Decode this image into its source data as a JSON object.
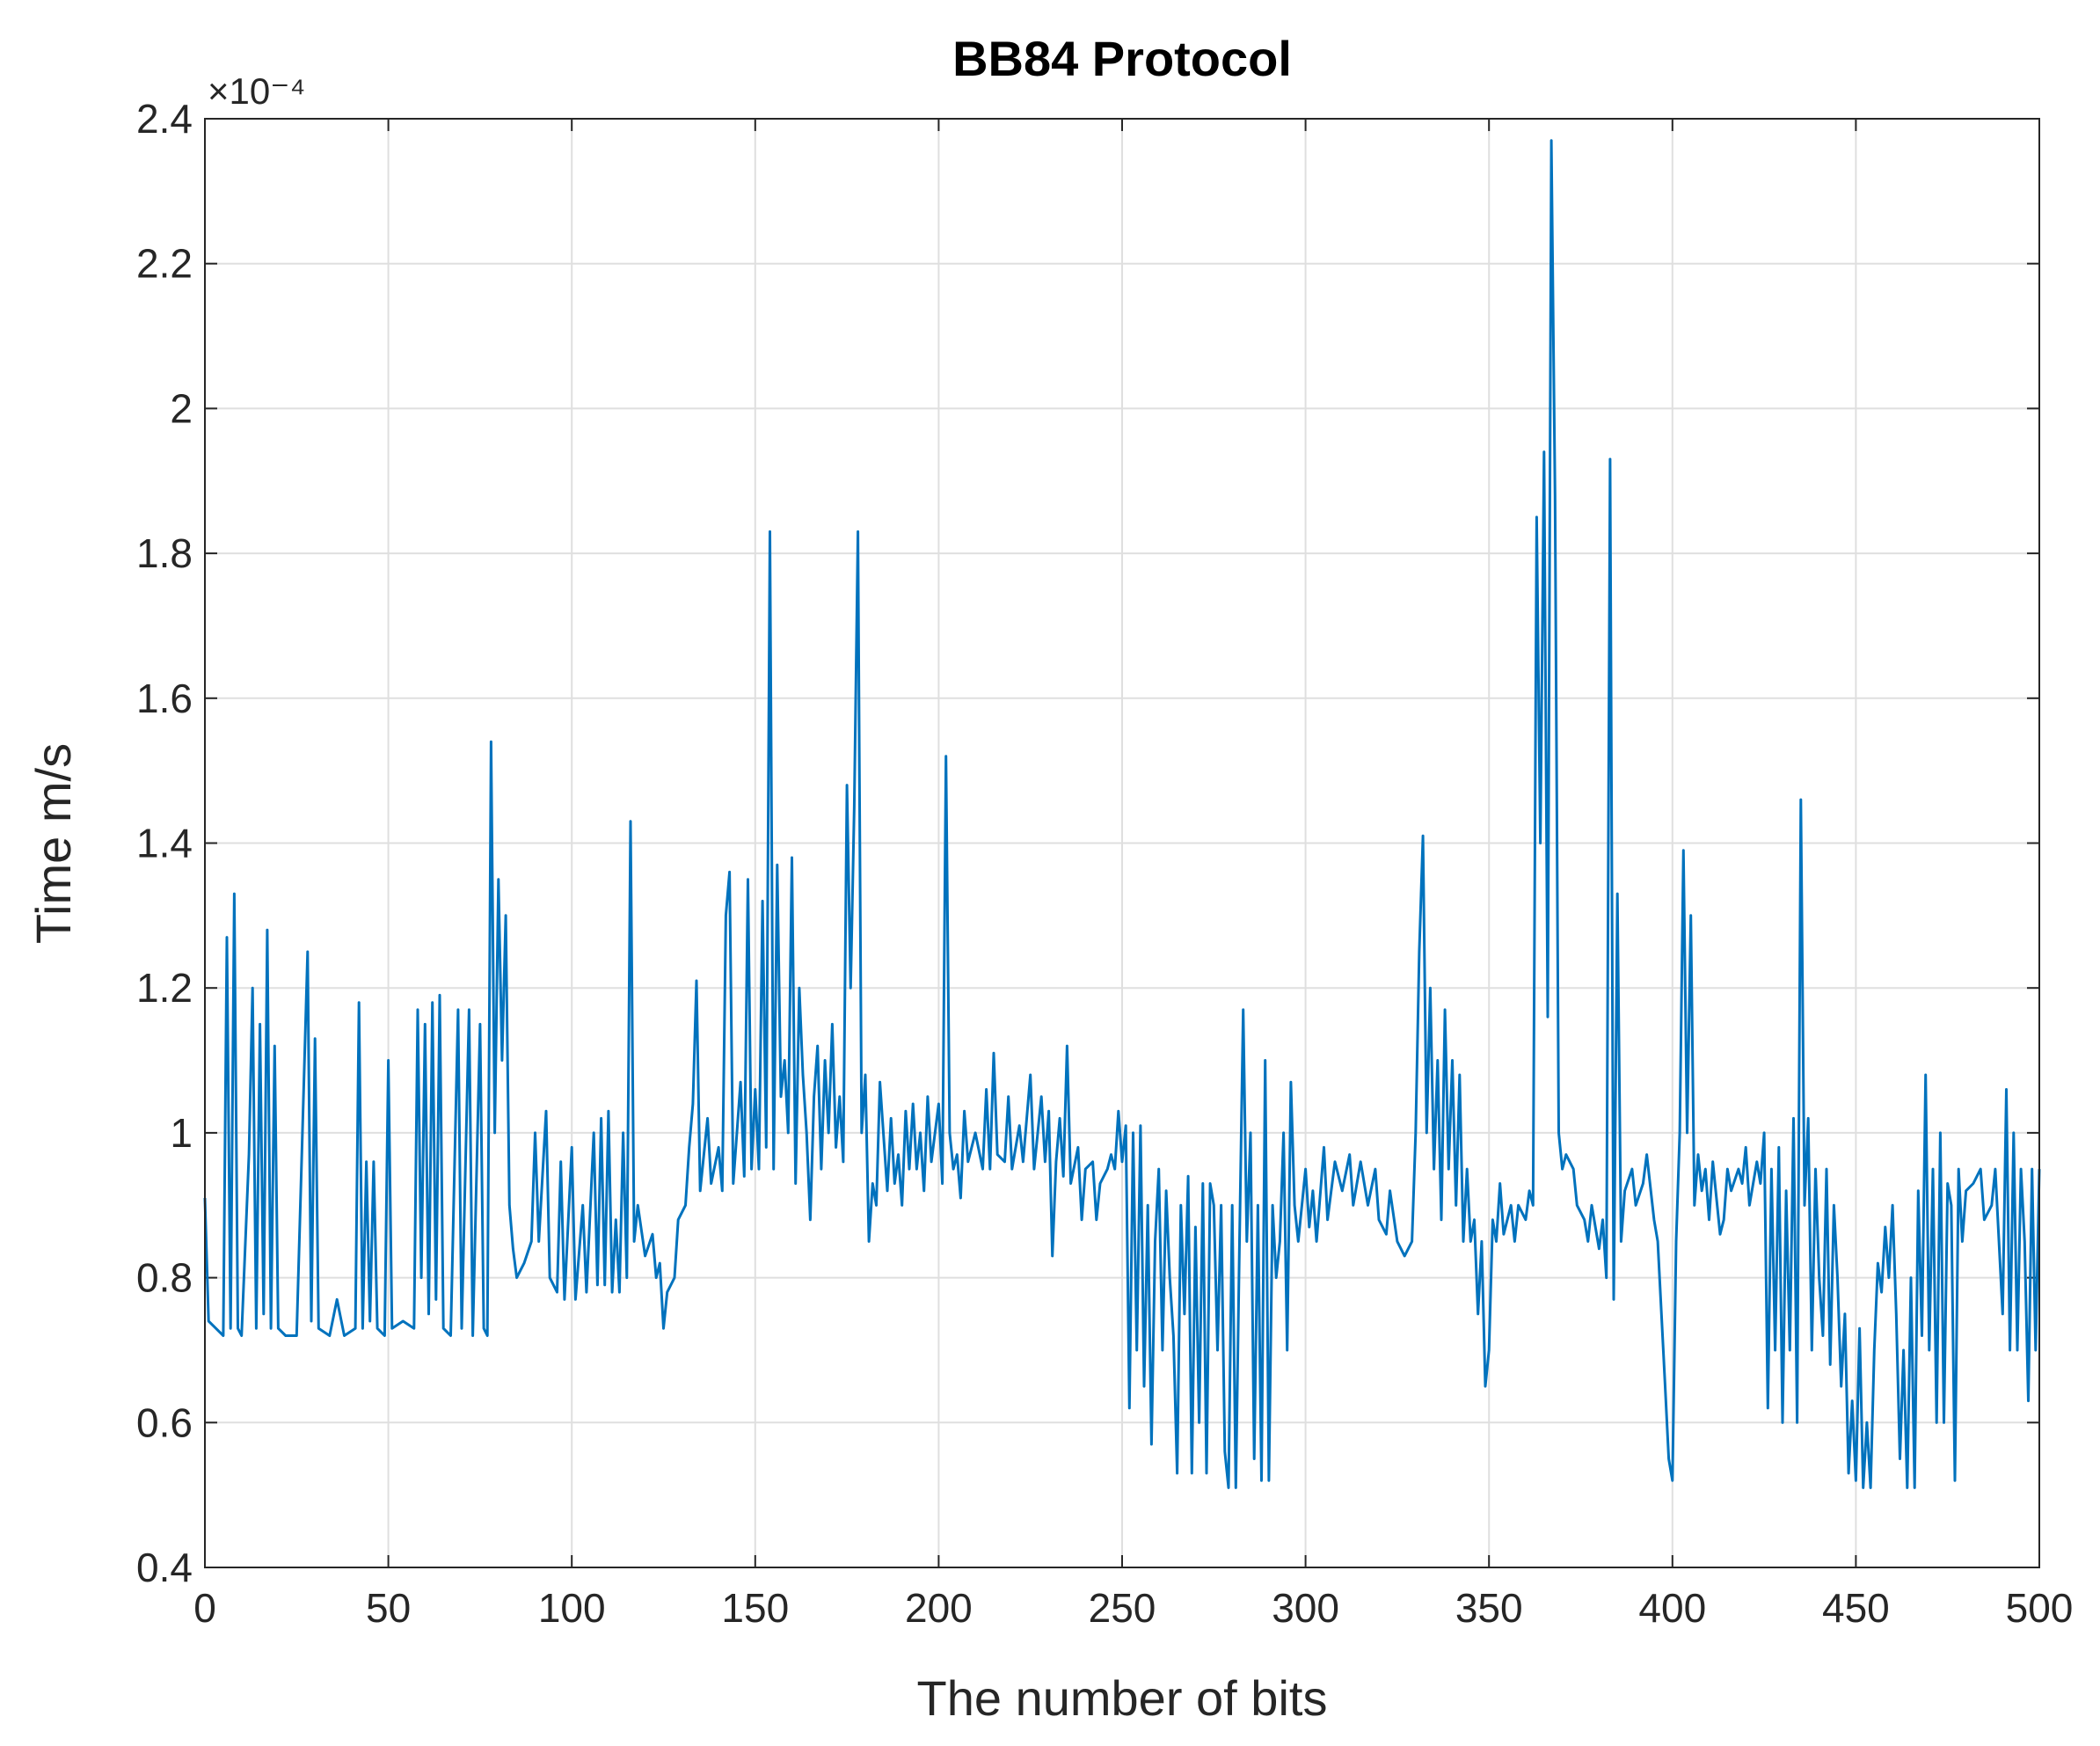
{
  "chart_data": {
    "type": "line",
    "title": "BB84 Protocol",
    "xlabel": "The number of bits",
    "ylabel": "Time m/s",
    "y_scale_label": "×10⁻⁴",
    "xlim": [
      0,
      500
    ],
    "xticks": [
      0,
      50,
      100,
      150,
      200,
      250,
      300,
      350,
      400,
      450,
      500
    ],
    "ylim": [
      0.4,
      2.4
    ],
    "yticks": [
      0.4,
      0.6,
      0.8,
      1,
      1.2,
      1.4,
      1.6,
      1.8,
      2,
      2.2,
      2.4
    ],
    "grid": true,
    "color": "#0072bd",
    "x": [
      0,
      1,
      3,
      5,
      6,
      7,
      8,
      9,
      10,
      12,
      13,
      14,
      15,
      16,
      17,
      18,
      19,
      20,
      22,
      25,
      28,
      29,
      30,
      31,
      34,
      36,
      38,
      41,
      42,
      43,
      44,
      45,
      46,
      47,
      49,
      50,
      51,
      54,
      57,
      58,
      59,
      60,
      61,
      62,
      63,
      64,
      65,
      67,
      69,
      70,
      72,
      73,
      75,
      76,
      77,
      78,
      79,
      80,
      81,
      82,
      83,
      84,
      85,
      87,
      89,
      90,
      91,
      93,
      94,
      96,
      97,
      98,
      100,
      101,
      103,
      104,
      106,
      107,
      108,
      109,
      110,
      111,
      112,
      113,
      114,
      115,
      116,
      117,
      118,
      120,
      122,
      123,
      124,
      125,
      126,
      128,
      129,
      131,
      132,
      133,
      134,
      135,
      137,
      138,
      140,
      141,
      142,
      143,
      144,
      146,
      147,
      148,
      149,
      150,
      151,
      152,
      153,
      154,
      155,
      156,
      157,
      158,
      159,
      160,
      161,
      162,
      163,
      164,
      165,
      166,
      167,
      168,
      169,
      170,
      171,
      172,
      173,
      174,
      175,
      176,
      177,
      178,
      179,
      180,
      181,
      182,
      183,
      184,
      186,
      187,
      188,
      189,
      190,
      191,
      192,
      193,
      194,
      195,
      196,
      197,
      198,
      200,
      201,
      202,
      203,
      204,
      205,
      206,
      207,
      208,
      210,
      212,
      213,
      214,
      215,
      216,
      218,
      219,
      220,
      222,
      223,
      225,
      226,
      228,
      229,
      230,
      231,
      232,
      233,
      234,
      235,
      236,
      238,
      239,
      240,
      242,
      243,
      244,
      246,
      247,
      248,
      249,
      250,
      251,
      252,
      253,
      254,
      255,
      256,
      257,
      258,
      259,
      260,
      261,
      262,
      263,
      264,
      265,
      266,
      267,
      268,
      269,
      270,
      271,
      272,
      273,
      274,
      275,
      276,
      277,
      278,
      279,
      280,
      281,
      282,
      283,
      284,
      285,
      286,
      287,
      288,
      289,
      290,
      291,
      292,
      293,
      294,
      295,
      296,
      297,
      298,
      300,
      301,
      302,
      303,
      305,
      306,
      308,
      310,
      312,
      313,
      315,
      317,
      319,
      320,
      322,
      323,
      325,
      327,
      329,
      330,
      331,
      332,
      333,
      334,
      335,
      336,
      337,
      338,
      339,
      340,
      341,
      342,
      343,
      344,
      345,
      346,
      347,
      348,
      349,
      350,
      351,
      352,
      353,
      354,
      356,
      357,
      358,
      360,
      361,
      362,
      363,
      364,
      365,
      366,
      367,
      368,
      369,
      370,
      371,
      373,
      374,
      376,
      377,
      378,
      380,
      381,
      382,
      383,
      384,
      385,
      386,
      387,
      389,
      390,
      392,
      393,
      395,
      396,
      397,
      398,
      399,
      400,
      401,
      402,
      403,
      404,
      405,
      406,
      407,
      408,
      409,
      410,
      411,
      413,
      414,
      415,
      416,
      418,
      419,
      420,
      421,
      423,
      424,
      425,
      426,
      427,
      428,
      429,
      430,
      431,
      432,
      433,
      434,
      435,
      436,
      437,
      438,
      439,
      440,
      441,
      442,
      443,
      444,
      445,
      446,
      447,
      448,
      449,
      450,
      451,
      452,
      453,
      454,
      455,
      456,
      457,
      458,
      459,
      460,
      461,
      462,
      463,
      464,
      465,
      466,
      467,
      468,
      469,
      470,
      471,
      472,
      473,
      474,
      475,
      476,
      477,
      478,
      479,
      480,
      482,
      484,
      485,
      487,
      488,
      490,
      491,
      492,
      493,
      494,
      495,
      496,
      497,
      498,
      499,
      500
    ],
    "values": [
      0.91,
      0.74,
      0.73,
      0.72,
      1.27,
      0.73,
      1.33,
      0.73,
      0.72,
      0.97,
      1.2,
      0.73,
      1.15,
      0.75,
      1.28,
      0.73,
      1.12,
      0.73,
      0.72,
      0.72,
      1.25,
      0.74,
      1.13,
      0.73,
      0.72,
      0.77,
      0.72,
      0.73,
      1.18,
      0.73,
      0.96,
      0.74,
      0.96,
      0.73,
      0.72,
      1.1,
      0.73,
      0.74,
      0.73,
      1.17,
      0.8,
      1.15,
      0.75,
      1.18,
      0.77,
      1.19,
      0.73,
      0.72,
      1.17,
      0.73,
      1.17,
      0.72,
      1.15,
      0.73,
      0.72,
      1.54,
      1.0,
      1.35,
      1.1,
      1.3,
      0.9,
      0.84,
      0.8,
      0.82,
      0.85,
      1.0,
      0.85,
      1.03,
      0.8,
      0.78,
      0.96,
      0.77,
      0.98,
      0.77,
      0.9,
      0.78,
      1.0,
      0.79,
      1.02,
      0.79,
      1.03,
      0.78,
      0.88,
      0.78,
      1.0,
      0.8,
      1.43,
      0.85,
      0.9,
      0.83,
      0.86,
      0.8,
      0.82,
      0.73,
      0.78,
      0.8,
      0.88,
      0.9,
      0.98,
      1.04,
      1.21,
      0.92,
      1.02,
      0.93,
      0.98,
      0.92,
      1.3,
      1.36,
      0.93,
      1.07,
      0.94,
      1.35,
      0.95,
      1.06,
      0.95,
      1.32,
      0.98,
      1.83,
      0.95,
      1.37,
      1.05,
      1.1,
      1.0,
      1.38,
      0.93,
      1.2,
      1.08,
      1.0,
      0.88,
      1.05,
      1.12,
      0.95,
      1.1,
      1.0,
      1.15,
      0.98,
      1.05,
      0.96,
      1.48,
      1.2,
      1.45,
      1.83,
      1.0,
      1.08,
      0.85,
      0.93,
      0.9,
      1.07,
      0.92,
      1.02,
      0.93,
      0.97,
      0.9,
      1.03,
      0.95,
      1.04,
      0.95,
      1.0,
      0.92,
      1.05,
      0.96,
      1.04,
      0.93,
      1.52,
      1.0,
      0.95,
      0.97,
      0.91,
      1.03,
      0.96,
      1.0,
      0.95,
      1.06,
      0.95,
      1.11,
      0.97,
      0.96,
      1.05,
      0.95,
      1.01,
      0.96,
      1.08,
      0.95,
      1.05,
      0.96,
      1.03,
      0.83,
      0.96,
      1.02,
      0.94,
      1.12,
      0.93,
      0.98,
      0.88,
      0.95,
      0.96,
      0.88,
      0.93,
      0.95,
      0.97,
      0.95,
      1.03,
      0.96,
      1.01,
      0.62,
      1.0,
      0.7,
      1.01,
      0.65,
      0.9,
      0.57,
      0.85,
      0.95,
      0.7,
      0.92,
      0.8,
      0.72,
      0.53,
      0.9,
      0.75,
      0.94,
      0.53,
      0.87,
      0.6,
      0.93,
      0.53,
      0.93,
      0.9,
      0.7,
      0.9,
      0.56,
      0.51,
      0.9,
      0.51,
      0.85,
      1.17,
      0.85,
      1.0,
      0.55,
      0.9,
      0.52,
      1.1,
      0.52,
      0.9,
      0.8,
      0.85,
      1.0,
      0.7,
      1.07,
      0.9,
      0.85,
      0.95,
      0.87,
      0.92,
      0.85,
      0.98,
      0.88,
      0.96,
      0.92,
      0.97,
      0.9,
      0.96,
      0.9,
      0.95,
      0.88,
      0.86,
      0.92,
      0.85,
      0.83,
      0.85,
      1.0,
      1.25,
      1.41,
      1.0,
      1.2,
      0.95,
      1.1,
      0.88,
      1.17,
      0.95,
      1.1,
      0.9,
      1.08,
      0.85,
      0.95,
      0.85,
      0.88,
      0.75,
      0.85,
      0.65,
      0.7,
      0.88,
      0.85,
      0.93,
      0.86,
      0.9,
      0.85,
      0.9,
      0.88,
      0.92,
      0.9,
      1.85,
      1.4,
      1.94,
      1.16,
      2.37,
      1.88,
      1.0,
      0.95,
      0.97,
      0.95,
      0.9,
      0.88,
      0.85,
      0.9,
      0.84,
      0.88,
      0.8,
      1.93,
      0.77,
      1.33,
      0.85,
      0.92,
      0.95,
      0.9,
      0.93,
      0.97,
      0.88,
      0.85,
      0.75,
      0.65,
      0.55,
      0.52,
      0.85,
      1.0,
      1.39,
      1.0,
      1.3,
      0.9,
      0.97,
      0.92,
      0.95,
      0.88,
      0.96,
      0.86,
      0.88,
      0.95,
      0.92,
      0.95,
      0.93,
      0.98,
      0.9,
      0.96,
      0.93,
      1.0,
      0.62,
      0.95,
      0.7,
      0.98,
      0.6,
      0.92,
      0.7,
      1.02,
      0.6,
      1.46,
      0.9,
      1.02,
      0.7,
      0.95,
      0.8,
      0.72,
      0.95,
      0.68,
      0.9,
      0.8,
      0.65,
      0.75,
      0.53,
      0.63,
      0.52,
      0.73,
      0.51,
      0.6,
      0.51,
      0.7,
      0.82,
      0.78,
      0.87,
      0.8,
      0.9,
      0.75,
      0.55,
      0.7,
      0.51,
      0.8,
      0.51,
      0.92,
      0.72,
      1.08,
      0.7,
      0.95,
      0.6,
      1.0,
      0.6,
      0.93,
      0.9,
      0.52,
      0.95,
      0.85,
      0.92,
      0.93,
      0.95,
      0.88,
      0.9,
      0.95,
      0.75,
      1.06,
      0.7,
      1.0,
      0.7,
      0.95,
      0.85,
      0.63,
      0.95,
      0.7,
      0.95
    ]
  }
}
